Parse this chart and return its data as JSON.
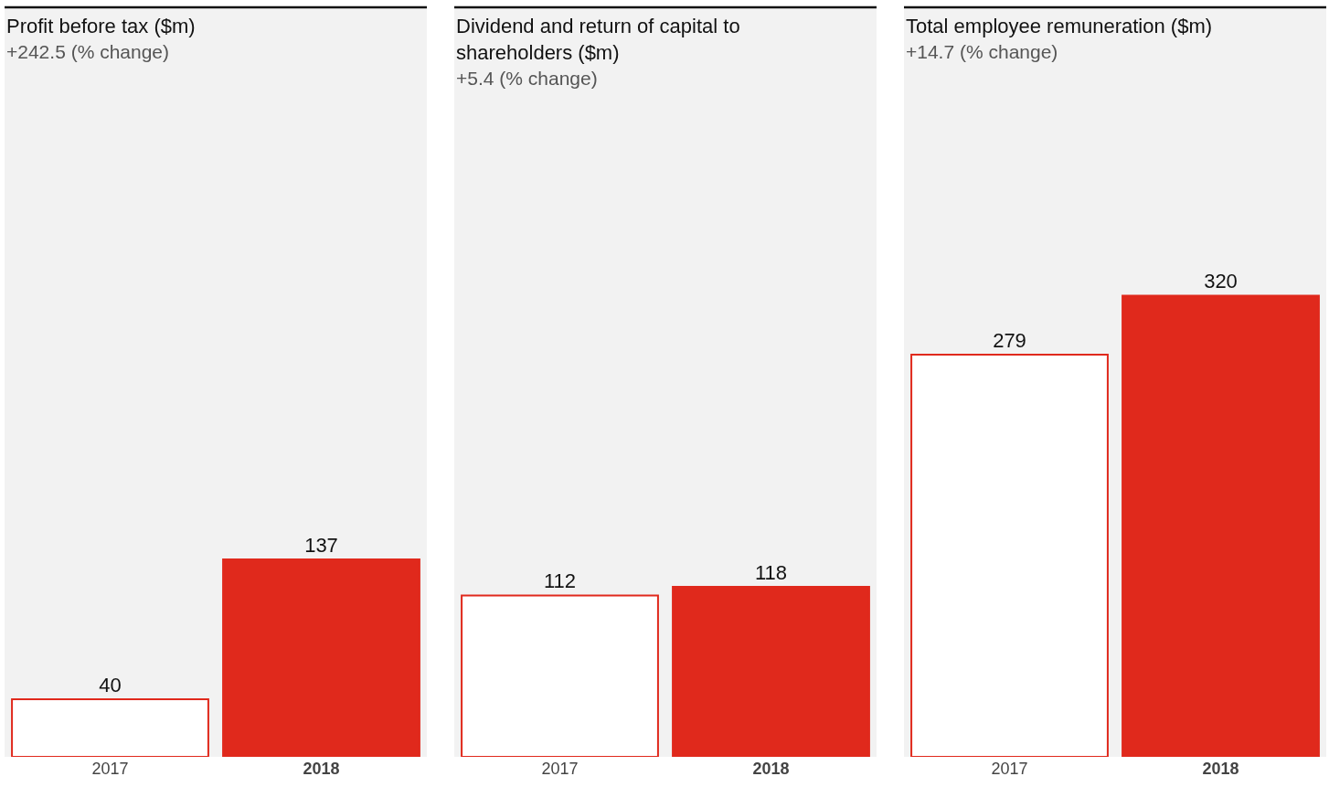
{
  "chart_data": [
    {
      "type": "bar",
      "title": "Profit before tax ($m)",
      "subtitle": "+242.5 (% change)",
      "categories": [
        "2017",
        "2018"
      ],
      "values": [
        40,
        137
      ],
      "colors": [
        "#ffffff",
        "#e0291c"
      ],
      "color": "#e0291c",
      "ylim": [
        0,
        520
      ],
      "data_labels": true,
      "tick_labels": "x"
    },
    {
      "type": "bar",
      "title": "Dividend and return of capital to shareholders ($m)",
      "subtitle": "+5.4 (% change)",
      "categories": [
        "2017",
        "2018"
      ],
      "values": [
        112,
        118
      ],
      "colors": [
        "#ffffff",
        "#e0291c"
      ],
      "color": "#e0291c",
      "ylim": [
        0,
        520
      ],
      "data_labels": true,
      "tick_labels": "x"
    },
    {
      "type": "bar",
      "title": "Total employee remuneration ($m)",
      "subtitle": "+14.7 (% change)",
      "categories": [
        "2017",
        "2018"
      ],
      "values": [
        279,
        320
      ],
      "colors": [
        "#ffffff",
        "#e0291c"
      ],
      "color": "#e0291c",
      "ylim": [
        0,
        520
      ],
      "data_labels": true,
      "tick_labels": "x"
    }
  ]
}
